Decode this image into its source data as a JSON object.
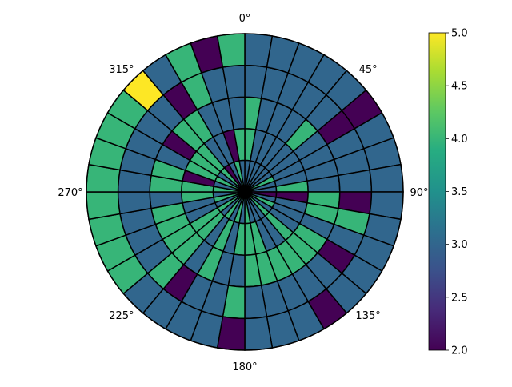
{
  "chart_data": {
    "type": "heatmap",
    "projection": "polar",
    "theta_direction": "clockwise",
    "theta_zero_location": "top",
    "n_sectors": 36,
    "n_rings": 5,
    "theta_tick_labels": [
      "0°",
      "45°",
      "90°",
      "135°",
      "180°",
      "225°",
      "270°",
      "315°"
    ],
    "colorbar": {
      "range": [
        2.0,
        5.0
      ],
      "ticks": [
        "2.0",
        "2.5",
        "3.0",
        "3.5",
        "4.0",
        "4.5",
        "5.0"
      ],
      "colormap": "viridis"
    },
    "grid": false,
    "cell_edge_color": "#000000",
    "values": [
      [
        3,
        3,
        3,
        3,
        3,
        3,
        4,
        3,
        3,
        2,
        3,
        4,
        3,
        4,
        3,
        3,
        3,
        4,
        3,
        4,
        3,
        4,
        3,
        4,
        3,
        4,
        3,
        4,
        3,
        4,
        3,
        4,
        2,
        3,
        4,
        3
      ],
      [
        4,
        3,
        3,
        3,
        3,
        3,
        3,
        3,
        4,
        2,
        3,
        3,
        3,
        4,
        3,
        3,
        4,
        4,
        4,
        3,
        4,
        3,
        4,
        4,
        3,
        3,
        4,
        4,
        2,
        4,
        4,
        4,
        3,
        3,
        2,
        4
      ],
      [
        4,
        3,
        3,
        3,
        4,
        3,
        3,
        3,
        3,
        4,
        4,
        3,
        4,
        4,
        4,
        4,
        4,
        4,
        3,
        3,
        4,
        3,
        4,
        4,
        4,
        4,
        3,
        4,
        4,
        3,
        2,
        4,
        4,
        3,
        3,
        3
      ],
      [
        3,
        3,
        3,
        3,
        3,
        2,
        3,
        3,
        3,
        2,
        4,
        3,
        2,
        3,
        3,
        3,
        3,
        3,
        4,
        3,
        3,
        2,
        4,
        3,
        3,
        3,
        3,
        3,
        3,
        3,
        3,
        3,
        2,
        4,
        3,
        3
      ],
      [
        3,
        3,
        3,
        3,
        3,
        2,
        3,
        3,
        3,
        3,
        3,
        3,
        3,
        3,
        2,
        3,
        3,
        3,
        2,
        3,
        3,
        3,
        3,
        4,
        4,
        4,
        4,
        4,
        4,
        4,
        4,
        5,
        3,
        4,
        2,
        4
      ]
    ]
  }
}
